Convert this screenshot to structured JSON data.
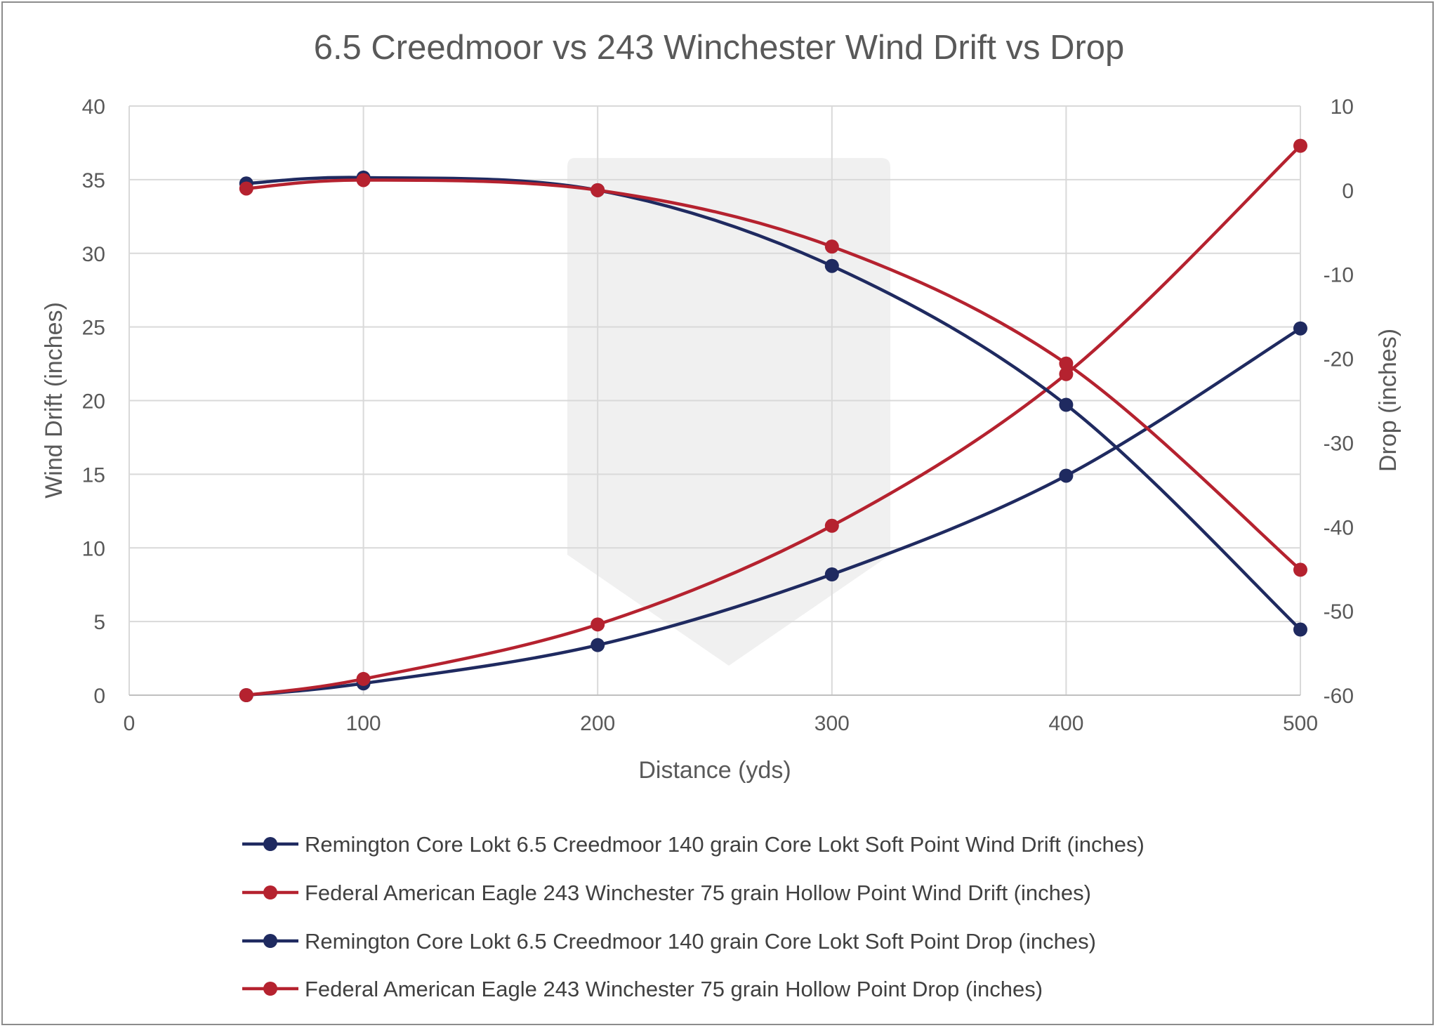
{
  "chart_data": {
    "type": "line",
    "title": "6.5 Creedmoor vs 243 Winchester Wind Drift vs Drop",
    "xlabel": "Distance (yds)",
    "ylabel": "Wind Drift (inches)",
    "y2label": "Drop (inches)",
    "xlim": [
      0,
      500
    ],
    "ylim": [
      0,
      40
    ],
    "y2lim": [
      -60,
      10
    ],
    "xticks": [
      "0",
      "100",
      "200",
      "300",
      "400",
      "500"
    ],
    "yticks": [
      "0",
      "5",
      "10",
      "15",
      "20",
      "25",
      "30",
      "35",
      "40"
    ],
    "y2ticks": [
      "-60",
      "-50",
      "-40",
      "-30",
      "-20",
      "-10",
      "0",
      "10"
    ],
    "grid": true,
    "smooth": true,
    "legend_position": "bottom",
    "x": [
      50,
      100,
      200,
      300,
      400,
      500
    ],
    "series": [
      {
        "name": "Remington Core Lokt 6.5 Creedmoor 140 grain Core Lokt Soft Point Wind Drift (inches)",
        "axis": "left",
        "color": "#1f2a60",
        "values": [
          0.0,
          0.8,
          3.4,
          8.2,
          14.9,
          24.9
        ]
      },
      {
        "name": "Federal American Eagle 243 Winchester 75 grain Hollow Point Wind Drift (inches)",
        "axis": "left",
        "color": "#b5222f",
        "values": [
          0.0,
          1.1,
          4.8,
          11.5,
          21.8,
          37.3
        ]
      },
      {
        "name": "Remington Core Lokt 6.5 Creedmoor 140 grain Core Lokt Soft Point Drop (inches)",
        "axis": "right",
        "color": "#1f2a60",
        "values": [
          0.8,
          1.5,
          0.0,
          -9.0,
          -25.5,
          -52.2
        ]
      },
      {
        "name": "Federal American Eagle 243 Winchester 75 grain Hollow Point Drop (inches)",
        "axis": "right",
        "color": "#b5222f",
        "values": [
          0.2,
          1.2,
          0.0,
          -6.7,
          -20.6,
          -45.1
        ]
      }
    ]
  }
}
